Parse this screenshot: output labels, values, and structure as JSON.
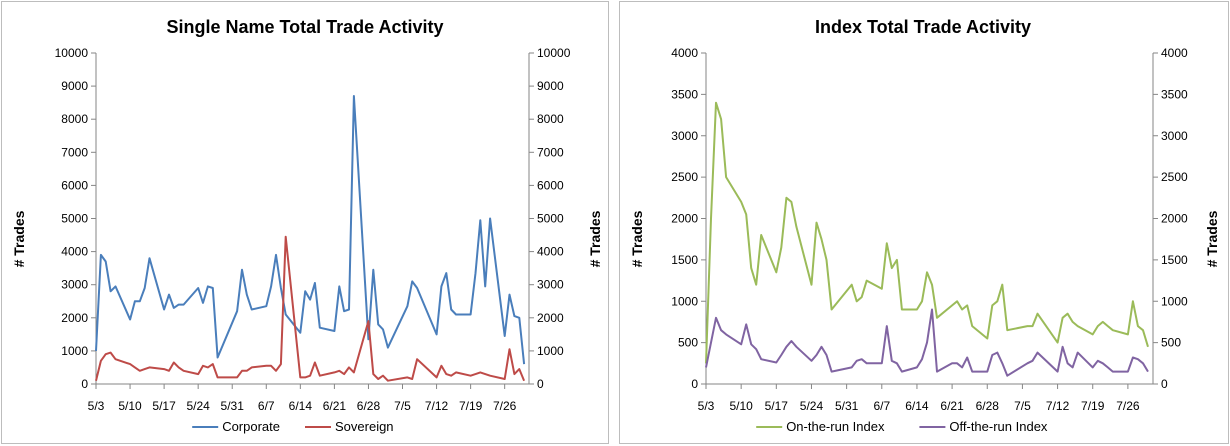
{
  "chart_data": [
    {
      "type": "line",
      "title": "Single Name Total Trade Activity",
      "ylabel_left": "# Trades",
      "ylabel_right": "# Trades",
      "ylim": [
        0,
        10000
      ],
      "yticks": [
        0,
        1000,
        2000,
        3000,
        4000,
        5000,
        6000,
        7000,
        8000,
        9000,
        10000
      ],
      "xlim": [
        "5/3",
        "7/31"
      ],
      "xticks": [
        "5/3",
        "5/10",
        "5/17",
        "5/24",
        "5/31",
        "6/7",
        "6/14",
        "6/21",
        "6/28",
        "7/5",
        "7/12",
        "7/19",
        "7/26"
      ],
      "grid": false,
      "legend_position": "bottom",
      "series": [
        {
          "name": "Corporate",
          "color": "#4a7ebb",
          "points": [
            [
              "5/3",
              1000
            ],
            [
              "5/4",
              3900
            ],
            [
              "5/5",
              3700
            ],
            [
              "5/6",
              2800
            ],
            [
              "5/7",
              2950
            ],
            [
              "5/10",
              1950
            ],
            [
              "5/11",
              2500
            ],
            [
              "5/12",
              2500
            ],
            [
              "5/13",
              2900
            ],
            [
              "5/14",
              3800
            ],
            [
              "5/17",
              2250
            ],
            [
              "5/18",
              2700
            ],
            [
              "5/19",
              2300
            ],
            [
              "5/20",
              2400
            ],
            [
              "5/21",
              2400
            ],
            [
              "5/24",
              2900
            ],
            [
              "5/25",
              2450
            ],
            [
              "5/26",
              2950
            ],
            [
              "5/27",
              2900
            ],
            [
              "5/28",
              800
            ],
            [
              "6/1",
              2200
            ],
            [
              "6/2",
              3450
            ],
            [
              "6/3",
              2700
            ],
            [
              "6/4",
              2250
            ],
            [
              "6/7",
              2350
            ],
            [
              "6/8",
              2950
            ],
            [
              "6/9",
              3900
            ],
            [
              "6/10",
              2900
            ],
            [
              "6/11",
              2100
            ],
            [
              "6/14",
              1550
            ],
            [
              "6/15",
              2800
            ],
            [
              "6/16",
              2550
            ],
            [
              "6/17",
              3050
            ],
            [
              "6/18",
              1700
            ],
            [
              "6/21",
              1600
            ],
            [
              "6/22",
              2950
            ],
            [
              "6/23",
              2200
            ],
            [
              "6/24",
              2250
            ],
            [
              "6/25",
              8700
            ],
            [
              "6/28",
              1350
            ],
            [
              "6/29",
              3450
            ],
            [
              "6/30",
              1800
            ],
            [
              "7/1",
              1650
            ],
            [
              "7/2",
              1100
            ],
            [
              "7/6",
              2350
            ],
            [
              "7/7",
              3100
            ],
            [
              "7/8",
              2900
            ],
            [
              "7/12",
              1500
            ],
            [
              "7/13",
              2950
            ],
            [
              "7/14",
              3350
            ],
            [
              "7/15",
              2250
            ],
            [
              "7/16",
              2100
            ],
            [
              "7/19",
              2100
            ],
            [
              "7/20",
              3350
            ],
            [
              "7/21",
              4950
            ],
            [
              "7/22",
              2950
            ],
            [
              "7/23",
              5000
            ],
            [
              "7/26",
              1450
            ],
            [
              "7/27",
              2700
            ],
            [
              "7/28",
              2050
            ],
            [
              "7/29",
              2000
            ],
            [
              "7/30",
              600
            ]
          ]
        },
        {
          "name": "Sovereign",
          "color": "#be4b48",
          "points": [
            [
              "5/3",
              100
            ],
            [
              "5/4",
              700
            ],
            [
              "5/5",
              900
            ],
            [
              "5/6",
              950
            ],
            [
              "5/7",
              750
            ],
            [
              "5/10",
              600
            ],
            [
              "5/11",
              500
            ],
            [
              "5/12",
              400
            ],
            [
              "5/13",
              450
            ],
            [
              "5/14",
              500
            ],
            [
              "5/17",
              450
            ],
            [
              "5/18",
              400
            ],
            [
              "5/19",
              650
            ],
            [
              "5/20",
              500
            ],
            [
              "5/21",
              400
            ],
            [
              "5/24",
              300
            ],
            [
              "5/25",
              550
            ],
            [
              "5/26",
              500
            ],
            [
              "5/27",
              600
            ],
            [
              "5/28",
              200
            ],
            [
              "6/1",
              200
            ],
            [
              "6/2",
              400
            ],
            [
              "6/3",
              400
            ],
            [
              "6/4",
              500
            ],
            [
              "6/7",
              550
            ],
            [
              "6/8",
              550
            ],
            [
              "6/9",
              400
            ],
            [
              "6/10",
              600
            ],
            [
              "6/11",
              4450
            ],
            [
              "6/14",
              200
            ],
            [
              "6/15",
              200
            ],
            [
              "6/16",
              250
            ],
            [
              "6/17",
              650
            ],
            [
              "6/18",
              250
            ],
            [
              "6/21",
              350
            ],
            [
              "6/22",
              400
            ],
            [
              "6/23",
              300
            ],
            [
              "6/24",
              500
            ],
            [
              "6/25",
              350
            ],
            [
              "6/28",
              1900
            ],
            [
              "6/29",
              300
            ],
            [
              "6/30",
              150
            ],
            [
              "7/1",
              250
            ],
            [
              "7/2",
              100
            ],
            [
              "7/6",
              200
            ],
            [
              "7/7",
              150
            ],
            [
              "7/8",
              750
            ],
            [
              "7/12",
              200
            ],
            [
              "7/13",
              550
            ],
            [
              "7/14",
              300
            ],
            [
              "7/15",
              250
            ],
            [
              "7/16",
              350
            ],
            [
              "7/19",
              250
            ],
            [
              "7/20",
              300
            ],
            [
              "7/21",
              350
            ],
            [
              "7/22",
              300
            ],
            [
              "7/23",
              250
            ],
            [
              "7/26",
              150
            ],
            [
              "7/27",
              1050
            ],
            [
              "7/28",
              300
            ],
            [
              "7/29",
              450
            ],
            [
              "7/30",
              100
            ]
          ]
        }
      ]
    },
    {
      "type": "line",
      "title": "Index Total Trade Activity",
      "ylabel_left": "# Trades",
      "ylabel_right": "# Trades",
      "ylim": [
        0,
        4000
      ],
      "yticks": [
        0,
        500,
        1000,
        1500,
        2000,
        2500,
        3000,
        3500,
        4000
      ],
      "xlim": [
        "5/3",
        "7/31"
      ],
      "xticks": [
        "5/3",
        "5/10",
        "5/17",
        "5/24",
        "5/31",
        "6/7",
        "6/14",
        "6/21",
        "6/28",
        "7/5",
        "7/12",
        "7/19",
        "7/26"
      ],
      "grid": false,
      "legend_position": "bottom",
      "series": [
        {
          "name": "On-the-run Index",
          "color": "#9bbb59",
          "points": [
            [
              "5/3",
              250
            ],
            [
              "5/4",
              2000
            ],
            [
              "5/5",
              3400
            ],
            [
              "5/6",
              3200
            ],
            [
              "5/7",
              2500
            ],
            [
              "5/10",
              2200
            ],
            [
              "5/11",
              2050
            ],
            [
              "5/12",
              1400
            ],
            [
              "5/13",
              1200
            ],
            [
              "5/14",
              1800
            ],
            [
              "5/17",
              1350
            ],
            [
              "5/18",
              1650
            ],
            [
              "5/19",
              2250
            ],
            [
              "5/20",
              2200
            ],
            [
              "5/21",
              1900
            ],
            [
              "5/24",
              1200
            ],
            [
              "5/25",
              1950
            ],
            [
              "5/26",
              1750
            ],
            [
              "5/27",
              1500
            ],
            [
              "5/28",
              900
            ],
            [
              "6/1",
              1200
            ],
            [
              "6/2",
              1000
            ],
            [
              "6/3",
              1050
            ],
            [
              "6/4",
              1250
            ],
            [
              "6/7",
              1150
            ],
            [
              "6/8",
              1700
            ],
            [
              "6/9",
              1400
            ],
            [
              "6/10",
              1500
            ],
            [
              "6/11",
              900
            ],
            [
              "6/14",
              900
            ],
            [
              "6/15",
              1000
            ],
            [
              "6/16",
              1350
            ],
            [
              "6/17",
              1200
            ],
            [
              "6/18",
              800
            ],
            [
              "6/21",
              950
            ],
            [
              "6/22",
              1000
            ],
            [
              "6/23",
              900
            ],
            [
              "6/24",
              950
            ],
            [
              "6/25",
              700
            ],
            [
              "6/28",
              550
            ],
            [
              "6/29",
              950
            ],
            [
              "6/30",
              1000
            ],
            [
              "7/1",
              1200
            ],
            [
              "7/2",
              650
            ],
            [
              "7/6",
              700
            ],
            [
              "7/7",
              700
            ],
            [
              "7/8",
              850
            ],
            [
              "7/12",
              500
            ],
            [
              "7/13",
              800
            ],
            [
              "7/14",
              850
            ],
            [
              "7/15",
              750
            ],
            [
              "7/16",
              700
            ],
            [
              "7/19",
              600
            ],
            [
              "7/20",
              700
            ],
            [
              "7/21",
              750
            ],
            [
              "7/22",
              700
            ],
            [
              "7/23",
              650
            ],
            [
              "7/26",
              600
            ],
            [
              "7/27",
              1000
            ],
            [
              "7/28",
              700
            ],
            [
              "7/29",
              650
            ],
            [
              "7/30",
              450
            ]
          ]
        },
        {
          "name": "Off-the-run Index",
          "color": "#8064a2",
          "points": [
            [
              "5/3",
              200
            ],
            [
              "5/4",
              500
            ],
            [
              "5/5",
              800
            ],
            [
              "5/6",
              650
            ],
            [
              "5/7",
              600
            ],
            [
              "5/10",
              480
            ],
            [
              "5/11",
              720
            ],
            [
              "5/12",
              480
            ],
            [
              "5/13",
              420
            ],
            [
              "5/14",
              300
            ],
            [
              "5/17",
              260
            ],
            [
              "5/18",
              350
            ],
            [
              "5/19",
              450
            ],
            [
              "5/20",
              520
            ],
            [
              "5/21",
              450
            ],
            [
              "5/24",
              280
            ],
            [
              "5/25",
              350
            ],
            [
              "5/26",
              450
            ],
            [
              "5/27",
              350
            ],
            [
              "5/28",
              150
            ],
            [
              "6/1",
              200
            ],
            [
              "6/2",
              280
            ],
            [
              "6/3",
              300
            ],
            [
              "6/4",
              250
            ],
            [
              "6/7",
              250
            ],
            [
              "6/8",
              700
            ],
            [
              "6/9",
              280
            ],
            [
              "6/10",
              250
            ],
            [
              "6/11",
              150
            ],
            [
              "6/14",
              200
            ],
            [
              "6/15",
              300
            ],
            [
              "6/16",
              500
            ],
            [
              "6/17",
              900
            ],
            [
              "6/18",
              150
            ],
            [
              "6/21",
              250
            ],
            [
              "6/22",
              250
            ],
            [
              "6/23",
              200
            ],
            [
              "6/24",
              320
            ],
            [
              "6/25",
              150
            ],
            [
              "6/28",
              150
            ],
            [
              "6/29",
              350
            ],
            [
              "6/30",
              380
            ],
            [
              "7/1",
              250
            ],
            [
              "7/2",
              100
            ],
            [
              "7/6",
              250
            ],
            [
              "7/7",
              280
            ],
            [
              "7/8",
              380
            ],
            [
              "7/12",
              150
            ],
            [
              "7/13",
              450
            ],
            [
              "7/14",
              250
            ],
            [
              "7/15",
              200
            ],
            [
              "7/16",
              380
            ],
            [
              "7/19",
              200
            ],
            [
              "7/20",
              280
            ],
            [
              "7/21",
              250
            ],
            [
              "7/22",
              200
            ],
            [
              "7/23",
              150
            ],
            [
              "7/26",
              150
            ],
            [
              "7/27",
              320
            ],
            [
              "7/28",
              300
            ],
            [
              "7/29",
              250
            ],
            [
              "7/30",
              150
            ]
          ]
        }
      ]
    }
  ]
}
